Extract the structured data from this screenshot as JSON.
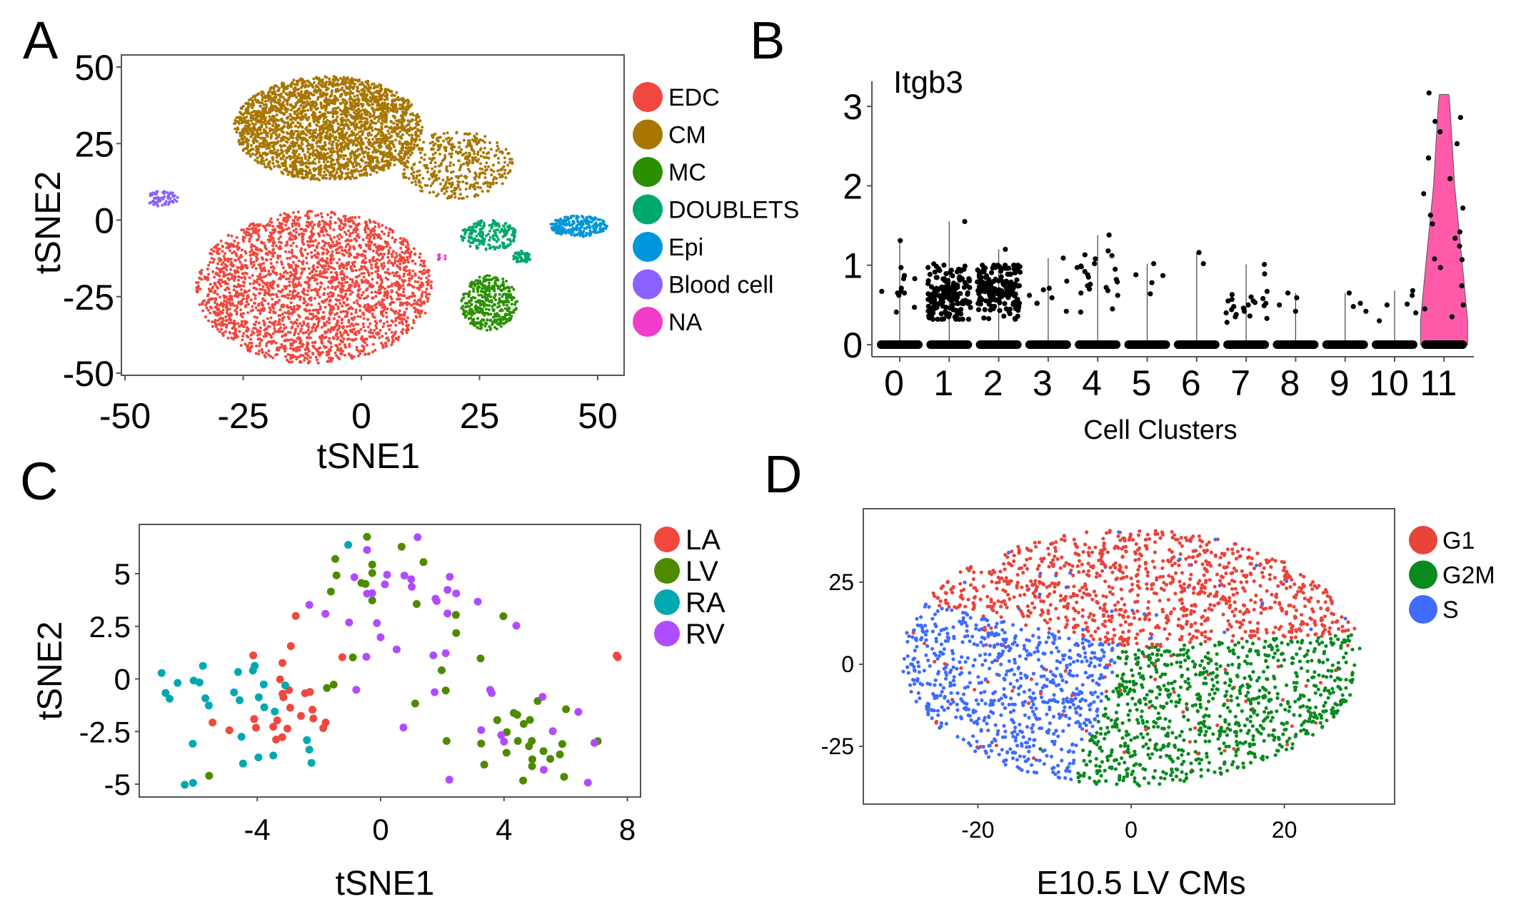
{
  "chart_data": [
    {
      "panel": "A",
      "type": "scatter",
      "xlabel": "tSNE1",
      "ylabel": "tSNE2",
      "xlim": [
        -51,
        55
      ],
      "ylim": [
        -54,
        55
      ],
      "xticks": [
        "-50",
        "-25",
        "0",
        "25",
        "50"
      ],
      "yticks": [
        "50",
        "25",
        "0",
        "-25",
        "-50"
      ],
      "legend_position": "right",
      "series": [
        {
          "name": "EDC",
          "color": "#f0483e",
          "regions": [
            {
              "center": [
                -10,
                -22
              ],
              "radius": [
                25,
                25
              ]
            }
          ]
        },
        {
          "name": "CM",
          "color": "#a87600",
          "regions": [
            {
              "center": [
                -7,
                30
              ],
              "radius": [
                20,
                17
              ]
            },
            {
              "center": [
                20,
                18
              ],
              "radius": [
                12,
                11
              ]
            }
          ]
        },
        {
          "name": "MC",
          "color": "#2a9000",
          "regions": [
            {
              "center": [
                27,
                -27
              ],
              "radius": [
                6,
                9
              ]
            }
          ]
        },
        {
          "name": "DOUBLETS",
          "color": "#00a86b",
          "regions": [
            {
              "center": [
                27,
                -5
              ],
              "radius": [
                6,
                5
              ]
            },
            {
              "center": [
                34,
                -12
              ],
              "radius": [
                2,
                2
              ]
            }
          ]
        },
        {
          "name": "Epi",
          "color": "#0096db",
          "regions": [
            {
              "center": [
                46,
                -2
              ],
              "radius": [
                6,
                3.5
              ]
            }
          ]
        },
        {
          "name": "Blood cell",
          "color": "#8b62ff",
          "regions": [
            {
              "center": [
                -42,
                7
              ],
              "radius": [
                3.5,
                2.5
              ]
            }
          ]
        },
        {
          "name": "NA",
          "color": "#f23bc8",
          "regions": [
            {
              "center": [
                17,
                -12
              ],
              "radius": [
                1,
                1.5
              ]
            }
          ]
        }
      ]
    },
    {
      "panel": "B",
      "type": "violin",
      "title": "Itgb3",
      "xlabel": "Cell Clusters",
      "ylabel": "",
      "ylim": [
        -0.2,
        3.3
      ],
      "yticks": [
        "0",
        "1",
        "2",
        "3"
      ],
      "categories": [
        "0",
        "1",
        "2",
        "3",
        "4",
        "5",
        "6",
        "7",
        "8",
        "9",
        "10",
        "11"
      ],
      "violin_color": "#ff5baa",
      "point_color": "#000000",
      "max_values": [
        1.31,
        1.55,
        1.2,
        1.09,
        1.38,
        1.02,
        1.16,
        1.01,
        0.65,
        0.65,
        0.68,
        3.17
      ],
      "nonzero_values": {
        "0": [
          1.31,
          0.97,
          0.87,
          0.83,
          0.83,
          0.71,
          0.67,
          0.67,
          0.65,
          0.65,
          0.62,
          0.47,
          0.41
        ],
        "3": [
          1.09,
          0.8,
          0.71,
          0.69,
          0.62,
          0.59,
          0.52,
          0.52,
          0.42
        ],
        "4": [
          1.38,
          1.18,
          1.13,
          1.12,
          1.08,
          1.02,
          0.99,
          0.98,
          0.97,
          0.95,
          0.92,
          0.88,
          0.85,
          0.82,
          0.79,
          0.76,
          0.74,
          0.72,
          0.7,
          0.68,
          0.65,
          0.62,
          0.45,
          0.41
        ],
        "5": [
          1.02,
          0.88,
          0.87,
          0.78,
          0.64
        ],
        "6": [
          1.16,
          1.02
        ],
        "7": [
          1.01,
          0.89,
          0.67,
          0.63,
          0.6,
          0.58,
          0.57,
          0.55,
          0.55,
          0.53,
          0.52,
          0.5,
          0.49,
          0.48,
          0.46,
          0.44,
          0.42,
          0.4,
          0.38,
          0.36,
          0.35,
          0.33,
          0.28
        ],
        "8": [
          0.65,
          0.59,
          0.5,
          0.42
        ],
        "9": [
          0.65,
          0.52,
          0.48,
          0.42
        ],
        "10": [
          0.68,
          0.62,
          0.51,
          0.5,
          0.4,
          0.3
        ],
        "11": [
          3.17,
          2.86,
          2.81,
          2.68,
          2.53,
          2.35,
          2.35,
          2.09,
          1.9,
          1.72,
          1.63,
          1.52,
          1.42,
          1.34,
          1.24,
          1.08,
          1.07,
          0.97,
          0.74,
          0.5,
          0.45,
          0.35
        ]
      },
      "dense_clusters": {
        "1": {
          "range": [
            0.32,
            1.55
          ],
          "typical": 0.65
        },
        "2": {
          "range": [
            0.32,
            1.2
          ],
          "typical": 0.7
        }
      },
      "violin_11_profile": [
        [
          0,
          1.0
        ],
        [
          0.3,
          1.0
        ],
        [
          1.0,
          0.78
        ],
        [
          2.0,
          0.45
        ],
        [
          3.0,
          0.25
        ],
        [
          3.15,
          0.2
        ]
      ]
    },
    {
      "panel": "C",
      "type": "scatter",
      "xlabel": "tSNE1",
      "ylabel": "tSNE2",
      "xlim": [
        -7.4,
        8.2
      ],
      "ylim": [
        -5.6,
        7.3
      ],
      "xticks": [
        -4,
        0,
        4,
        8
      ],
      "yticks": [
        5,
        2.5,
        0,
        -2.5,
        -5
      ],
      "xtick_labels": [
        "-4",
        "0",
        "4",
        "8"
      ],
      "ytick_labels": [
        "5",
        "2.5",
        "0",
        "-2.5",
        "-5"
      ],
      "legend_position": "right",
      "series": [
        {
          "name": "LA",
          "color": "#f0483e",
          "points": [
            [
              -2.75,
              2.99
            ],
            [
              -2.91,
              1.56
            ],
            [
              -4.13,
              1.12
            ],
            [
              -3.18,
              0.76
            ],
            [
              -3.26,
              -0.02
            ],
            [
              -2.97,
              -0.53
            ],
            [
              -3.18,
              -0.71
            ],
            [
              -3.15,
              -0.87
            ],
            [
              -2.45,
              -0.68
            ],
            [
              -2.29,
              -0.62
            ],
            [
              -2.93,
              -1.37
            ],
            [
              -2.21,
              -1.46
            ],
            [
              -2.58,
              -1.76
            ],
            [
              -2.18,
              -1.88
            ],
            [
              -4.1,
              -1.91
            ],
            [
              -3.35,
              -1.97
            ],
            [
              -5.45,
              -2.07
            ],
            [
              -1.78,
              -2.07
            ],
            [
              -1.86,
              -2.34
            ],
            [
              -4.04,
              -2.32
            ],
            [
              -3.48,
              -2.27
            ],
            [
              -3.02,
              -2.36
            ],
            [
              -4.9,
              -2.44
            ],
            [
              -3.39,
              -2.88
            ],
            [
              -3.19,
              -2.77
            ],
            [
              -1.24,
              1.03
            ],
            [
              7.65,
              1.11
            ],
            [
              7.69,
              1.03
            ]
          ]
        },
        {
          "name": "LV",
          "color": "#4e8a00",
          "points": [
            [
              -0.44,
              6.75
            ],
            [
              0.68,
              6.28
            ],
            [
              1.39,
              5.55
            ],
            [
              -1.47,
              5.7
            ],
            [
              -0.27,
              5.43
            ],
            [
              -1.43,
              4.92
            ],
            [
              -0.27,
              5.03
            ],
            [
              -0.62,
              4.56
            ],
            [
              -0.49,
              4.51
            ],
            [
              -1.61,
              4.15
            ],
            [
              -0.27,
              3.73
            ],
            [
              1.17,
              3.56
            ],
            [
              2.44,
              3.04
            ],
            [
              3.98,
              2.98
            ],
            [
              2.45,
              2.18
            ],
            [
              -0.9,
              1.02
            ],
            [
              3.24,
              0.97
            ],
            [
              1.98,
              0.41
            ],
            [
              -1.74,
              -0.43
            ],
            [
              -1.52,
              -0.27
            ],
            [
              2.11,
              -0.55
            ],
            [
              1.12,
              -1.17
            ],
            [
              5.09,
              -1.05
            ],
            [
              6.01,
              -1.44
            ],
            [
              4.32,
              -1.62
            ],
            [
              4.43,
              -1.71
            ],
            [
              3.78,
              -1.96
            ],
            [
              4.84,
              -1.95
            ],
            [
              4.64,
              -2.14
            ],
            [
              4.09,
              -2.53
            ],
            [
              2.14,
              -2.95
            ],
            [
              3.26,
              -3.07
            ],
            [
              4.45,
              -2.95
            ],
            [
              4.9,
              -2.95
            ],
            [
              4.81,
              -3.2
            ],
            [
              5.89,
              -3.09
            ],
            [
              7.04,
              -2.96
            ],
            [
              4.08,
              -3.51
            ],
            [
              5.28,
              -3.43
            ],
            [
              5.81,
              -3.59
            ],
            [
              5.5,
              -3.8
            ],
            [
              4.92,
              -3.82
            ],
            [
              4.91,
              -4.15
            ],
            [
              3.36,
              -4.07
            ],
            [
              5.95,
              -4.65
            ],
            [
              4.62,
              -4.83
            ],
            [
              -5.56,
              -4.6
            ]
          ]
        },
        {
          "name": "RA",
          "color": "#00a8b0",
          "points": [
            [
              -1.05,
              6.37
            ],
            [
              -7.1,
              0.28
            ],
            [
              -5.76,
              0.62
            ],
            [
              -6.58,
              -0.19
            ],
            [
              -6.06,
              -0.08
            ],
            [
              -5.87,
              -0.17
            ],
            [
              -6.97,
              -0.67
            ],
            [
              -6.84,
              -0.94
            ],
            [
              -5.68,
              -0.92
            ],
            [
              -5.57,
              -1.26
            ],
            [
              -4.62,
              0.33
            ],
            [
              -4.14,
              0.4
            ],
            [
              -4.08,
              0.62
            ],
            [
              -4.75,
              -0.64
            ],
            [
              -4.57,
              -1.01
            ],
            [
              -3.79,
              -0.26
            ],
            [
              -3.95,
              -0.87
            ],
            [
              -3.77,
              -1.35
            ],
            [
              -3.43,
              -1.55
            ],
            [
              -3.09,
              -0.31
            ],
            [
              -4.51,
              -2.75
            ],
            [
              -6.09,
              -3.08
            ],
            [
              -2.39,
              -2.91
            ],
            [
              -2.31,
              -3.36
            ],
            [
              -3.48,
              -3.64
            ],
            [
              -3.96,
              -3.73
            ],
            [
              -4.46,
              -4.02
            ],
            [
              -2.24,
              -3.99
            ],
            [
              -6.35,
              -5.03
            ],
            [
              -6.08,
              -4.94
            ]
          ]
        },
        {
          "name": "RV",
          "color": "#b04cff",
          "points": [
            [
              1.2,
              6.73
            ],
            [
              -0.44,
              6.13
            ],
            [
              -0.85,
              4.83
            ],
            [
              0.21,
              4.95
            ],
            [
              0.77,
              4.91
            ],
            [
              0.99,
              4.74
            ],
            [
              2.24,
              4.85
            ],
            [
              0.14,
              4.49
            ],
            [
              1.01,
              4.38
            ],
            [
              -0.44,
              4.05
            ],
            [
              -0.27,
              4.07
            ],
            [
              2.17,
              4.23
            ],
            [
              2.45,
              4.06
            ],
            [
              1.78,
              3.81
            ],
            [
              1.82,
              3.7
            ],
            [
              3.15,
              3.67
            ],
            [
              -2.31,
              3.52
            ],
            [
              -1.79,
              3.09
            ],
            [
              2.17,
              3.11
            ],
            [
              -1.02,
              2.68
            ],
            [
              -0.12,
              2.65
            ],
            [
              4.4,
              2.53
            ],
            [
              0.0,
              1.98
            ],
            [
              0.52,
              1.4
            ],
            [
              1.71,
              1.12
            ],
            [
              2.11,
              1.22
            ],
            [
              -0.46,
              1.05
            ],
            [
              -0.79,
              -0.52
            ],
            [
              1.75,
              -0.63
            ],
            [
              3.55,
              -0.52
            ],
            [
              3.6,
              -0.67
            ],
            [
              5.25,
              -0.85
            ],
            [
              6.41,
              -1.57
            ],
            [
              0.74,
              -2.31
            ],
            [
              3.26,
              -2.43
            ],
            [
              5.58,
              -2.48
            ],
            [
              3.91,
              -2.67
            ],
            [
              4.0,
              -2.98
            ],
            [
              6.93,
              -3.04
            ],
            [
              5.29,
              -4.32
            ],
            [
              2.23,
              -4.79
            ],
            [
              6.72,
              -4.93
            ]
          ]
        }
      ]
    },
    {
      "panel": "D",
      "type": "scatter",
      "xlabel": "E10.5 LV CMs",
      "ylabel": "",
      "xlim": [
        -34,
        35
      ],
      "ylim": [
        -42,
        48
      ],
      "xticks": [
        "-20",
        "0",
        "20"
      ],
      "yticks": [
        "25",
        "0",
        "-25"
      ],
      "legend_position": "right",
      "series": [
        {
          "name": "G1",
          "color": "#e8443a",
          "extent": {
            "x": [
              -29,
              25
            ],
            "y": [
              3,
              44
            ]
          }
        },
        {
          "name": "G2M",
          "color": "#0a8a1e",
          "extent": {
            "x": [
              -12,
              31
            ],
            "y": [
              -38,
              15
            ]
          }
        },
        {
          "name": "S",
          "color": "#3f6bff",
          "extent": {
            "x": [
              -30,
              5
            ],
            "y": [
              -32,
              20
            ]
          }
        }
      ]
    }
  ],
  "panels": {
    "A": "A",
    "B": "B",
    "C": "C",
    "D": "D"
  }
}
